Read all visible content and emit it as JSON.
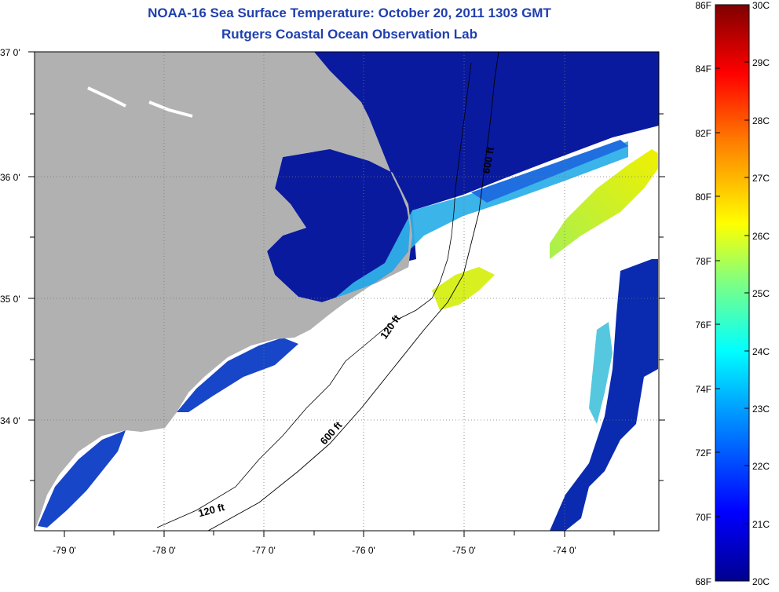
{
  "title": "NOAA-16 Sea Surface Temperature:  October 20, 2011 1303 GMT",
  "subtitle": "Rutgers Coastal Ocean Observation Lab",
  "map": {
    "lat_labels": [
      "37 0'",
      "36 0'",
      "35 0'",
      "34 0'"
    ],
    "lon_labels": [
      "-79 0'",
      "-78 0'",
      "-77 0'",
      "-76 0'",
      "-75 0'",
      "-74 0'"
    ],
    "isobath_labels": [
      "600 ft",
      "120 ft",
      "600 ft",
      "120 ft"
    ],
    "colors": {
      "land": "#b1b1b1",
      "cloud": "#ffffff",
      "cold_water": "#0a1a9e"
    }
  },
  "colorbar": {
    "f_labels": [
      "86F",
      "84F",
      "82F",
      "80F",
      "78F",
      "76F",
      "74F",
      "72F",
      "70F",
      "68F"
    ],
    "c_labels": [
      "30C",
      "29C",
      "28C",
      "27C",
      "26C",
      "25C",
      "24C",
      "23C",
      "22C",
      "21C",
      "20C"
    ],
    "colors": [
      "#00008f",
      "#0000ff",
      "#00a0ff",
      "#00ffff",
      "#80ff80",
      "#ffff00",
      "#ff8000",
      "#ff0000",
      "#800000"
    ]
  }
}
